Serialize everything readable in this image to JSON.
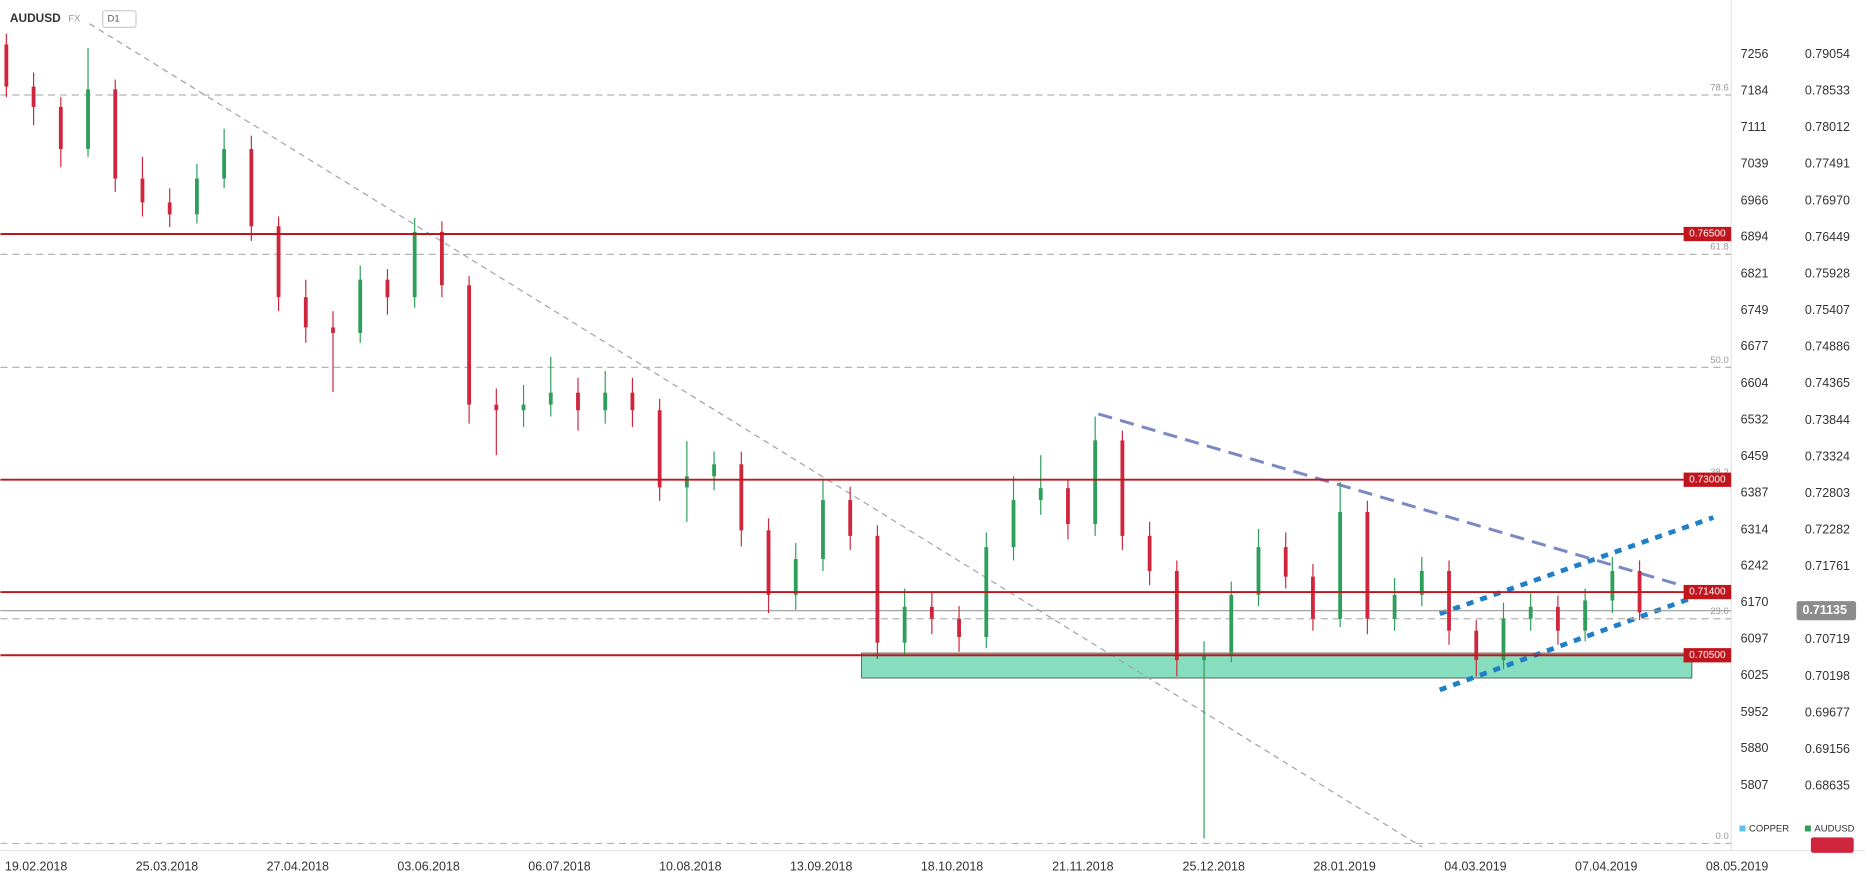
{
  "header": {
    "symbol": "AUDUSD",
    "market": "FX",
    "interval": "D1"
  },
  "chart_data": {
    "type": "candlestick",
    "ylim": [
      0.67719,
      0.79833
    ],
    "yticks": [
      0.79054,
      0.78533,
      0.78012,
      0.77491,
      {
        "value": 0.7697,
        "label": "0.76970"
      },
      0.76449,
      0.75928,
      0.75407,
      0.74886,
      0.74365,
      0.73844,
      0.73324,
      0.72803,
      0.72282,
      0.71761,
      0.70719,
      0.70198,
      0.69677,
      0.69156,
      0.68635
    ],
    "y2lim": [
      5678.6,
      7364.5
    ],
    "y2ticks": [
      7256,
      7184,
      7111,
      7039,
      6966,
      6894,
      6821,
      6749,
      6677,
      6604,
      6532,
      6459,
      6387,
      6314,
      6242,
      6170,
      6097,
      6025,
      5952,
      5880,
      5807
    ],
    "x_labels": [
      "19.02.2018",
      "25.03.2018",
      "27.04.2018",
      "03.06.2018",
      "06.07.2018",
      "10.08.2018",
      "13.09.2018",
      "18.10.2018",
      "21.11.2018",
      "25.12.2018",
      "28.01.2019",
      "04.03.2019",
      "07.04.2019",
      "08.05.2019"
    ],
    "up_color": "#2e9e5b",
    "down_color": "#d0263d",
    "candles": [
      [
        0.792,
        0.7935,
        0.7845,
        0.786
      ],
      [
        0.786,
        0.788,
        0.7805,
        0.7831
      ],
      [
        0.7831,
        0.7845,
        0.7745,
        0.7771
      ],
      [
        0.7771,
        0.7915,
        0.776,
        0.7856
      ],
      [
        0.7856,
        0.787,
        0.771,
        0.7729
      ],
      [
        0.7729,
        0.776,
        0.7675,
        0.7695
      ],
      [
        0.7695,
        0.7715,
        0.766,
        0.7678
      ],
      [
        0.7678,
        0.775,
        0.7665,
        0.7729
      ],
      [
        0.7729,
        0.78,
        0.7715,
        0.7771
      ],
      [
        0.7771,
        0.779,
        0.764,
        0.7661
      ],
      [
        0.7661,
        0.7675,
        0.754,
        0.756
      ],
      [
        0.756,
        0.7585,
        0.7495,
        0.7517
      ],
      [
        0.7517,
        0.754,
        0.7425,
        0.7509
      ],
      [
        0.7509,
        0.7605,
        0.7495,
        0.7585
      ],
      [
        0.7585,
        0.76,
        0.7535,
        0.756
      ],
      [
        0.756,
        0.7673,
        0.7545,
        0.7653
      ],
      [
        0.7653,
        0.7668,
        0.756,
        0.7577
      ],
      [
        0.7577,
        0.759,
        0.738,
        0.7407
      ],
      [
        0.7407,
        0.743,
        0.7335,
        0.7399
      ],
      [
        0.7399,
        0.7435,
        0.7375,
        0.7407
      ],
      [
        0.7407,
        0.7475,
        0.739,
        0.7424
      ],
      [
        0.7424,
        0.7445,
        0.737,
        0.7399
      ],
      [
        0.7399,
        0.7455,
        0.738,
        0.7424
      ],
      [
        0.7424,
        0.7445,
        0.7375,
        0.7399
      ],
      [
        0.7399,
        0.7415,
        0.727,
        0.7289
      ],
      [
        0.7289,
        0.7355,
        0.724,
        0.7305
      ],
      [
        0.7305,
        0.734,
        0.7285,
        0.7322
      ],
      [
        0.7322,
        0.734,
        0.7205,
        0.7228
      ],
      [
        0.7228,
        0.7245,
        0.711,
        0.7136
      ],
      [
        0.7136,
        0.721,
        0.7115,
        0.7187
      ],
      [
        0.7187,
        0.73,
        0.717,
        0.7271
      ],
      [
        0.7271,
        0.729,
        0.72,
        0.722
      ],
      [
        0.722,
        0.7235,
        0.7045,
        0.7068
      ],
      [
        0.7068,
        0.7145,
        0.705,
        0.7119
      ],
      [
        0.7119,
        0.714,
        0.708,
        0.7102
      ],
      [
        0.7102,
        0.712,
        0.7055,
        0.7076
      ],
      [
        0.7076,
        0.7225,
        0.706,
        0.7204
      ],
      [
        0.7204,
        0.7305,
        0.7185,
        0.7271
      ],
      [
        0.7271,
        0.7335,
        0.725,
        0.7288
      ],
      [
        0.7288,
        0.73,
        0.7215,
        0.7237
      ],
      [
        0.7237,
        0.739,
        0.722,
        0.7356
      ],
      [
        0.7356,
        0.737,
        0.72,
        0.722
      ],
      [
        0.722,
        0.724,
        0.715,
        0.717
      ],
      [
        0.717,
        0.7185,
        0.702,
        0.7043
      ],
      [
        0.7043,
        0.707,
        0.6789,
        0.7051
      ],
      [
        0.7051,
        0.7155,
        0.704,
        0.7136
      ],
      [
        0.7136,
        0.723,
        0.712,
        0.7204
      ],
      [
        0.7204,
        0.7225,
        0.7145,
        0.7162
      ],
      [
        0.7162,
        0.718,
        0.7085,
        0.7102
      ],
      [
        0.7102,
        0.7297,
        0.709,
        0.7254
      ],
      [
        0.7254,
        0.727,
        0.708,
        0.7102
      ],
      [
        0.7102,
        0.716,
        0.7085,
        0.7136
      ],
      [
        0.7136,
        0.719,
        0.712,
        0.717
      ],
      [
        0.717,
        0.7185,
        0.7065,
        0.7085
      ],
      [
        0.7085,
        0.71,
        0.702,
        0.7043
      ],
      [
        0.7043,
        0.7125,
        0.703,
        0.7102
      ],
      [
        0.7102,
        0.714,
        0.7085,
        0.7119
      ],
      [
        0.7119,
        0.7135,
        0.7065,
        0.7085
      ],
      [
        0.7085,
        0.7145,
        0.707,
        0.7128
      ],
      [
        0.7128,
        0.719,
        0.711,
        0.717
      ],
      [
        0.717,
        0.7185,
        0.71,
        0.7111
      ]
    ],
    "levels": [
      {
        "value": 0.765,
        "label": "0.76500"
      },
      {
        "value": 0.73,
        "label": "0.73000"
      },
      {
        "value": 0.714,
        "label": "0.71400"
      },
      {
        "value": 0.705,
        "label": "0.70500"
      }
    ],
    "level_color": "#c0151d",
    "current_price": {
      "value": 0.71135,
      "label": "0.71135"
    },
    "fib_levels": [
      {
        "label": "78.6",
        "price": 0.7848
      },
      {
        "label": "61.8",
        "price": 0.7621
      },
      {
        "label": "50.0",
        "price": 0.746
      },
      {
        "label": "38.2",
        "price": 0.73
      },
      {
        "label": "23.6",
        "price": 0.7102
      },
      {
        "label": "0.0",
        "price": 0.6782
      }
    ],
    "overlays": [
      {
        "name": "COPPER",
        "color": "#5bc0eb"
      },
      {
        "name": "AUDUSD",
        "color": "#2e9e5b"
      }
    ]
  }
}
